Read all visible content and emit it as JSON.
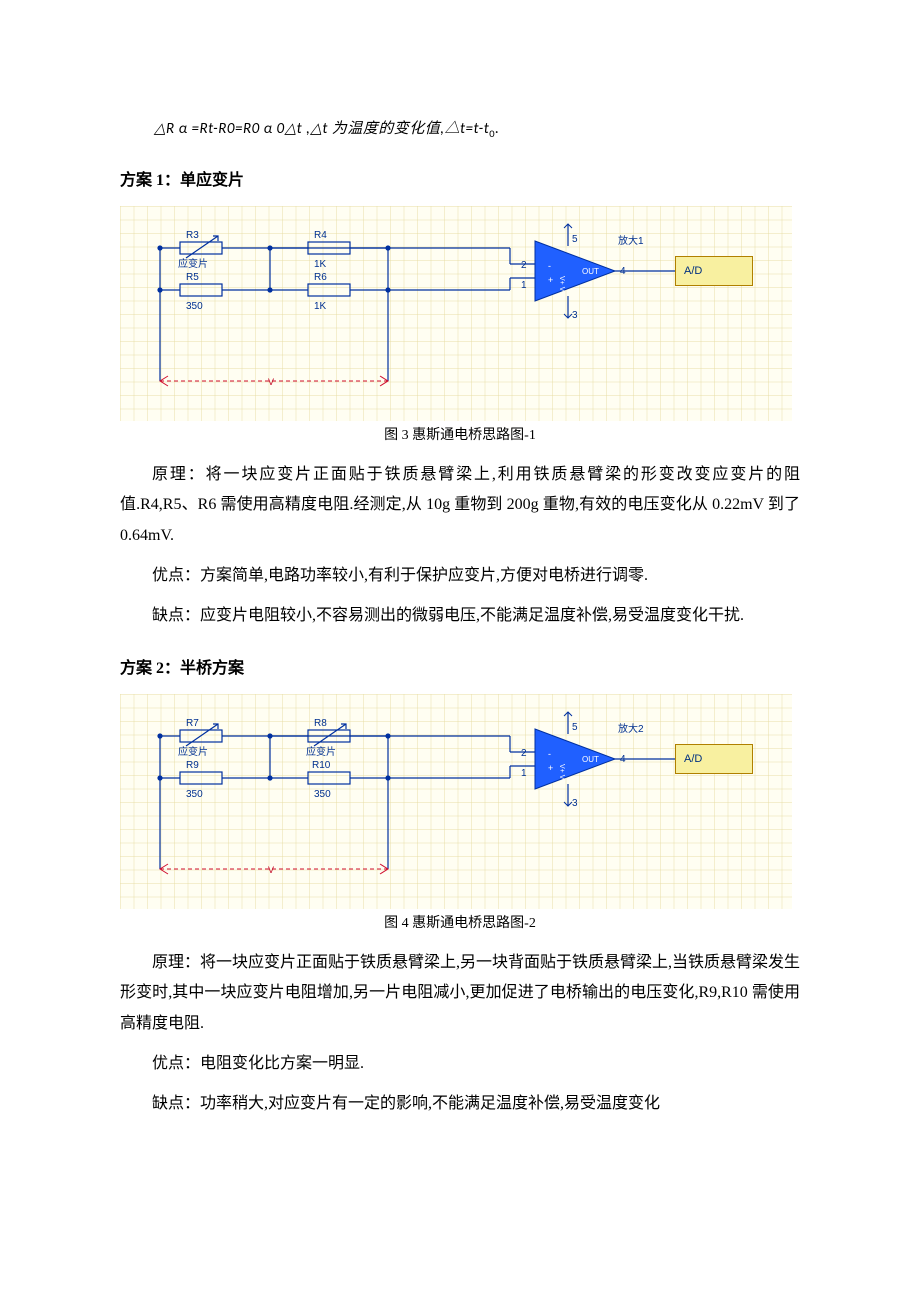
{
  "formula": {
    "text_html": "△<i>R</i> α =<i>Rt</i>-<i>R</i>0=<i>R</i>0 α 0△<i>t</i> ,△<i>t</i> 为温度的变化值,△<i>t</i>=<i>t</i>-<i>t</i><sub>0</sub>."
  },
  "section1": {
    "heading": "方案 1：单应变片",
    "caption": "图 3  惠斯通电桥思路图-1",
    "para_principle": "原理：将一块应变片正面贴于铁质悬臂梁上,利用铁质悬臂梁的形变改变应变片的阻值.R4,R5、R6 需使用高精度电阻.经测定,从 10g 重物到 200g 重物,有效的电压变化从 0.22mV 到了 0.64mV.",
    "para_adv": "优点：方案简单,电路功率较小,有利于保护应变片,方便对电桥进行调零.",
    "para_dis": "缺点：应变片电阻较小,不容易测出的微弱电压,不能满足温度补偿,易受温度变化干扰.",
    "schematic": {
      "R3": {
        "name": "R3",
        "desc": "应变片"
      },
      "R4": {
        "name": "R4",
        "desc": "1K"
      },
      "R5": {
        "name": "R5",
        "desc": "350"
      },
      "R6": {
        "name": "R6",
        "desc": "1K"
      },
      "amp": "放大1",
      "ad": "A/D",
      "amp_out": "OUT",
      "vlabel": "V",
      "pins": {
        "p1": "1",
        "p2": "2",
        "p3": "3",
        "p4": "4",
        "p5": "5"
      }
    }
  },
  "section2": {
    "heading": "方案 2：半桥方案",
    "caption": "图 4  惠斯通电桥思路图-2",
    "para_principle": "原理：将一块应变片正面贴于铁质悬臂梁上,另一块背面贴于铁质悬臂梁上,当铁质悬臂梁发生形变时,其中一块应变片电阻增加,另一片电阻减小,更加促进了电桥输出的电压变化,R9,R10 需使用高精度电阻.",
    "para_adv": "优点：电阻变化比方案一明显.",
    "para_dis": "缺点：功率稍大,对应变片有一定的影响,不能满足温度补偿,易受温度变化",
    "schematic": {
      "R7": {
        "name": "R7",
        "desc": "应变片"
      },
      "R8": {
        "name": "R8",
        "desc": "应变片"
      },
      "R9": {
        "name": "R9",
        "desc": "350"
      },
      "R10": {
        "name": "R10",
        "desc": "350"
      },
      "amp": "放大2",
      "ad": "A/D",
      "amp_out": "OUT",
      "vlabel": "V",
      "pins": {
        "p1": "1",
        "p2": "2",
        "p3": "3",
        "p4": "4",
        "p5": "5"
      }
    }
  },
  "colors": {
    "wire": "#0030a0",
    "red": "#d01030",
    "triangle_fill": "#2060ff",
    "ad_fill": "#f8f0a0",
    "ad_border": "#b08000",
    "grid_bg": "#fffef2"
  }
}
